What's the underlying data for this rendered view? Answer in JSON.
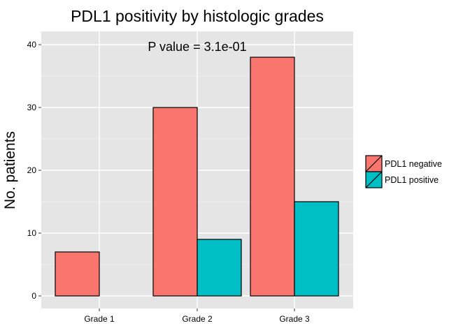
{
  "chart_data": {
    "type": "bar",
    "title": "PDL1 positivity by histologic grades",
    "annotation": "P value = 3.1e-01",
    "xlabel": "",
    "ylabel": "No. patients",
    "categories": [
      "Grade 1",
      "Grade 2",
      "Grade 3"
    ],
    "series": [
      {
        "name": "PDL1 negative",
        "values": [
          7,
          30,
          38
        ],
        "color": "#F8766D"
      },
      {
        "name": "PDL1 positive",
        "values": [
          0,
          9,
          15
        ],
        "color": "#00BFC4"
      }
    ],
    "ylim": [
      0,
      42
    ],
    "yticks": [
      "0",
      "10",
      "20",
      "30",
      "40"
    ],
    "grid": true,
    "legend_position": "right",
    "panel_background": "#E5E5E5",
    "grid_color": "#FFFFFF",
    "bar_outline": "#000000"
  }
}
